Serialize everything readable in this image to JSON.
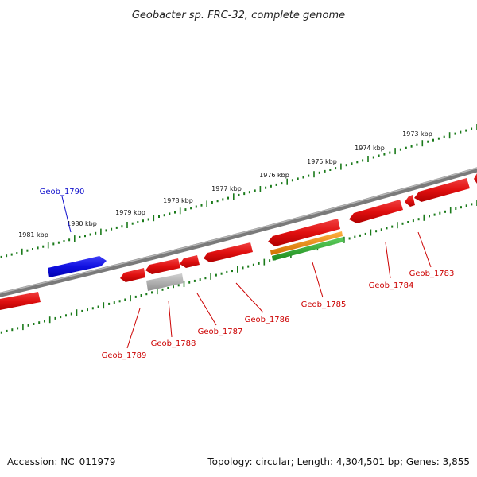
{
  "title": "Geobacter sp. FRC-32, complete genome",
  "footer": {
    "accession_label": "Accession: NC_011979",
    "summary": "Topology: circular; Length: 4,304,501 bp; Genes: 3,855"
  },
  "colors": {
    "backbone": "#7a7a7a",
    "ticks": "#1a7a1a",
    "gene_red": "#e01010",
    "gene_blue": "#1010e0",
    "gene_gray": "#b0b0b0",
    "gene_orange": "#f08a00",
    "gene_green": "#2ca82c",
    "label_red": "#cc0000",
    "label_blue": "#1010cc"
  },
  "scale": {
    "unit": "kbp",
    "labels": [
      "1981 kbp",
      "1980 kbp",
      "1979 kbp",
      "1978 kbp",
      "1977 kbp",
      "1976 kbp",
      "1975 kbp",
      "1974 kbp",
      "1973 kbp"
    ]
  },
  "genes": [
    {
      "id": "Geob_1790",
      "strand": "+",
      "color": "blue"
    },
    {
      "id": "Geob_1789",
      "strand": "-",
      "color": "red"
    },
    {
      "id": "Geob_1788",
      "strand": "-",
      "color": "gray"
    },
    {
      "id": "Geob_1787",
      "strand": "-",
      "color": "red"
    },
    {
      "id": "Geob_1786",
      "strand": "-",
      "color": "red"
    },
    {
      "id": "Geob_1785",
      "strand": "-",
      "color": "red"
    },
    {
      "id": "Geob_1784",
      "strand": "-",
      "color": "red"
    },
    {
      "id": "Geob_1783",
      "strand": "-",
      "color": "red"
    }
  ]
}
